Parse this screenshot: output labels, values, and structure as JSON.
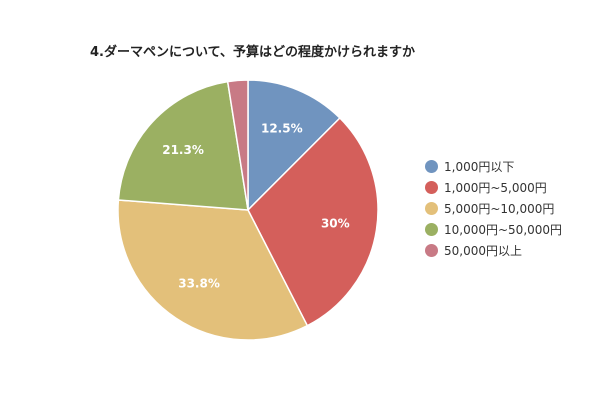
{
  "chart_data": {
    "type": "pie",
    "title": "4.ダーマペンについて、予算はどの程度かけられますか",
    "legend_position": "right",
    "slices": [
      {
        "label": "1,000円以下",
        "value": 12.5,
        "display": "12.5%",
        "color": "#7094bf"
      },
      {
        "label": "1,000円~5,000円",
        "value": 30,
        "display": "30%",
        "color": "#d45f5b"
      },
      {
        "label": "5,000円~10,000円",
        "value": 33.8,
        "display": "33.8%",
        "color": "#e3c07a"
      },
      {
        "label": "10,000円~50,000円",
        "value": 21.3,
        "display": "21.3%",
        "color": "#9bb062"
      },
      {
        "label": "50,000円以上",
        "value": 2.5,
        "display": "",
        "color": "#c87a85"
      }
    ]
  }
}
